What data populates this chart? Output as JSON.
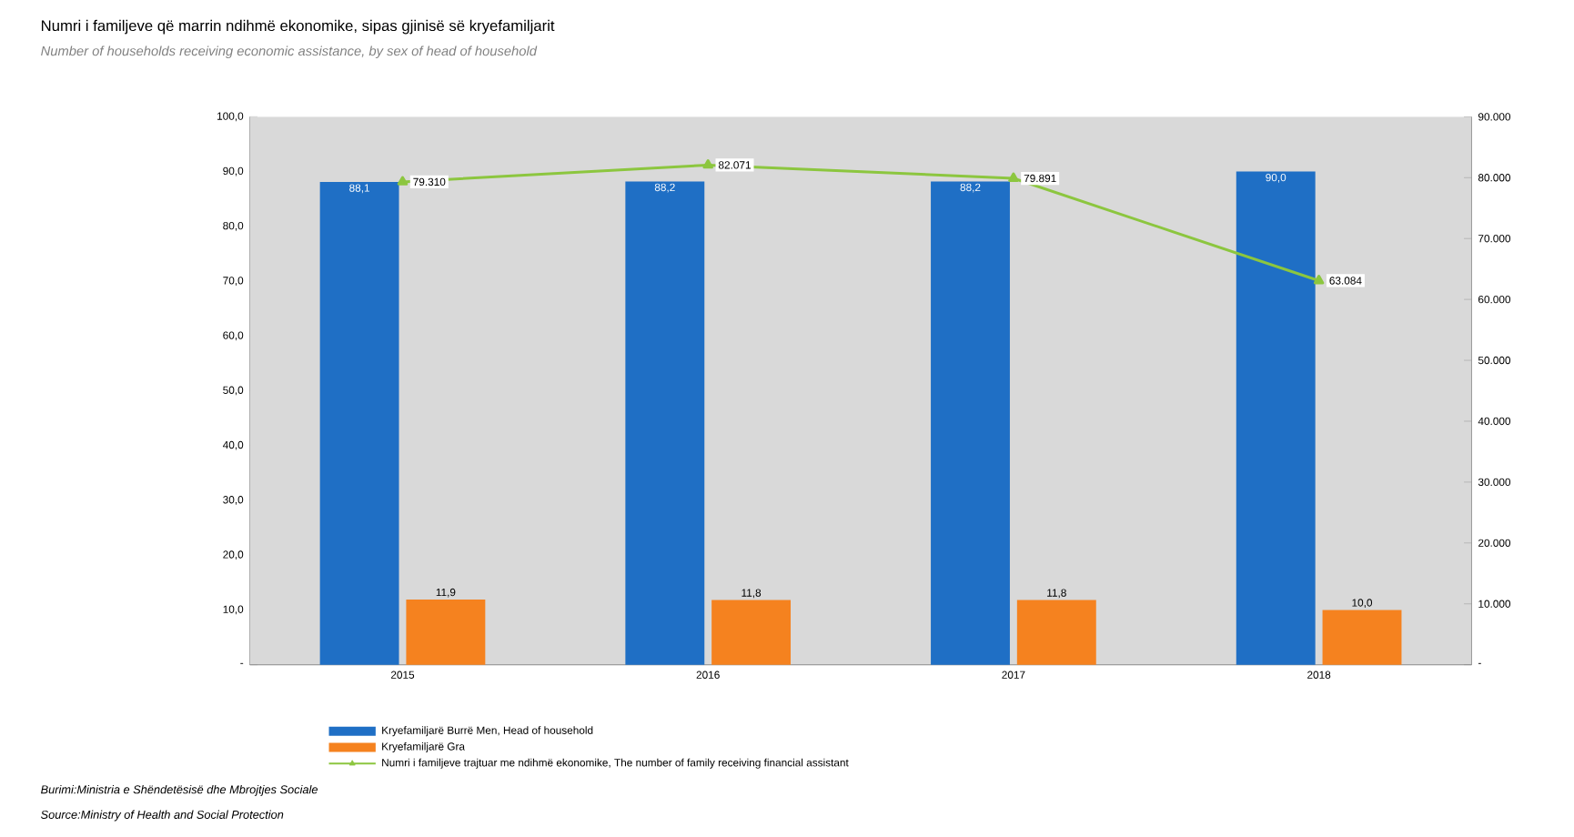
{
  "chart_data": {
    "type": "bar",
    "title": "Numri i familjeve që marrin ndihmë ekonomike, sipas gjinisë së kryefamiljarit",
    "subtitle": "Number of households receiving economic assistance, by sex of head of household",
    "categories": [
      "2015",
      "2016",
      "2017",
      "2018"
    ],
    "series": [
      {
        "name": "Kryefamiljarë Burrë Men, Head of household",
        "color": "#1f6fc5",
        "values": [
          88.1,
          88.2,
          88.2,
          90.0
        ],
        "value_labels": [
          "88,1",
          "88,2",
          "88,2",
          "90,0"
        ]
      },
      {
        "name": "Kryefamiljarë Gra",
        "color": "#f5821f",
        "values": [
          11.9,
          11.8,
          11.8,
          10.0
        ],
        "value_labels": [
          "11,9",
          "11,8",
          "11,8",
          "10,0"
        ]
      },
      {
        "name": "Numri i familjeve trajtuar me ndihmë ekonomike, The number of family receiving financial assistant",
        "type": "line",
        "axis": "y2",
        "marker": "triangle",
        "color": "#8cc63f",
        "values": [
          79310,
          82071,
          79891,
          63084
        ],
        "value_labels": [
          "79.310",
          "82.071",
          "79.891",
          "63.084"
        ]
      }
    ],
    "ylim": [
      0,
      100
    ],
    "yticks": [
      {
        "value": 0,
        "label": "-"
      },
      {
        "value": 10,
        "label": "10,0"
      },
      {
        "value": 20,
        "label": "20,0"
      },
      {
        "value": 30,
        "label": "30,0"
      },
      {
        "value": 40,
        "label": "40,0"
      },
      {
        "value": 50,
        "label": "50,0"
      },
      {
        "value": 60,
        "label": "60,0"
      },
      {
        "value": 70,
        "label": "70,0"
      },
      {
        "value": 80,
        "label": "80,0"
      },
      {
        "value": 90,
        "label": "90,0"
      },
      {
        "value": 100,
        "label": "100,0"
      }
    ],
    "y2lim": [
      0,
      90000
    ],
    "y2ticks": [
      {
        "value": 0,
        "label": "-"
      },
      {
        "value": 10000,
        "label": "10.000"
      },
      {
        "value": 20000,
        "label": "20.000"
      },
      {
        "value": 30000,
        "label": "30.000"
      },
      {
        "value": 40000,
        "label": "40.000"
      },
      {
        "value": 50000,
        "label": "50.000"
      },
      {
        "value": 60000,
        "label": "60.000"
      },
      {
        "value": 70000,
        "label": "70.000"
      },
      {
        "value": 80000,
        "label": "80.000"
      },
      {
        "value": 90000,
        "label": "90.000"
      }
    ],
    "legend": "bottom",
    "annotations": [
      "Burimi:Ministria e Shëndetësisë dhe Mbrojtjes Sociale",
      "Source:Ministry of Health and Social Protection"
    ]
  }
}
